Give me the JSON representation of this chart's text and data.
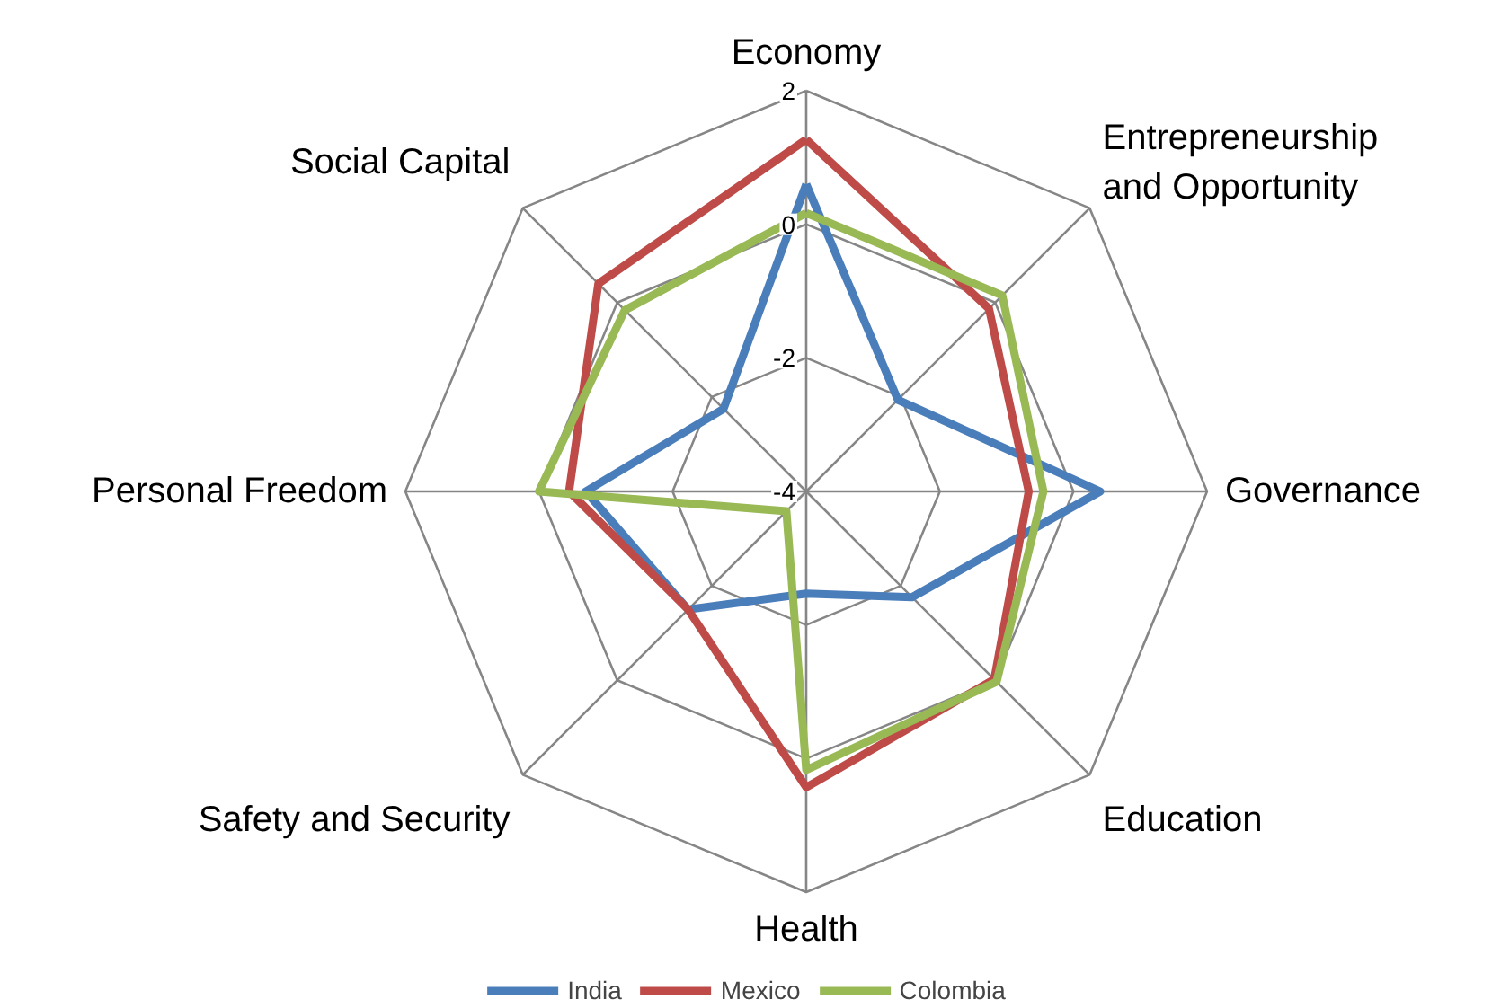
{
  "chart_data": {
    "type": "radar",
    "categories": [
      "Economy",
      "Entrepreneurship\nand Opportunity",
      "Governance",
      "Education",
      "Health",
      "Safety and Security",
      "Personal Freedom",
      "Social Capital"
    ],
    "ylim": [
      -4,
      2
    ],
    "yticks": [
      -4,
      -2,
      0,
      2
    ],
    "grid": true,
    "legend": "bottom",
    "line_style": "solid",
    "marker": "none",
    "series": [
      {
        "name": "India",
        "color": "#4a7ebb",
        "values": [
          0.6,
          -2.06,
          0.4,
          -1.76,
          -2.47,
          -1.5,
          -0.7,
          -2.25
        ]
      },
      {
        "name": "Mexico",
        "color": "#be4b48",
        "values": [
          1.27,
          -0.13,
          -0.67,
          -0.02,
          0.43,
          -1.5,
          -0.45,
          0.4
        ]
      },
      {
        "name": "Colombia",
        "color": "#98b954",
        "values": [
          0.17,
          0.15,
          -0.45,
          0.03,
          0.17,
          -3.58,
          0.0,
          -0.16
        ]
      }
    ]
  }
}
